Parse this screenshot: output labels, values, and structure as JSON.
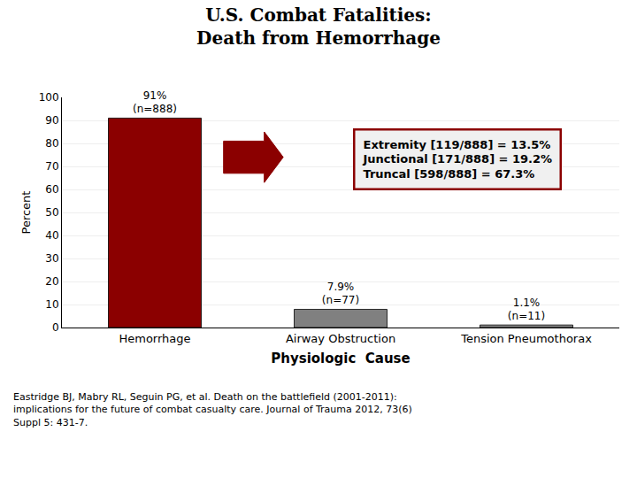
{
  "chart_data": {
    "type": "bar",
    "title": "U.S. Combat Fatalities:\nDeath from Hemorrhage",
    "categories": [
      "Hemorrhage",
      "Airway Obstruction",
      "Tension Pneumothorax"
    ],
    "values": [
      91,
      7.9,
      1.1
    ],
    "value_labels": [
      "91%",
      "7.9%",
      "1.1%"
    ],
    "count_labels": [
      "(n=888)",
      "(n=77)",
      "(n=11)"
    ],
    "colors": [
      "#8B0000",
      "#808080",
      "#808080"
    ],
    "xlabel": "Physiologic  Cause",
    "ylabel": "Percent",
    "ylim": [
      0,
      100
    ],
    "yticks": [
      0,
      10,
      20,
      30,
      40,
      50,
      60,
      70,
      80,
      90,
      100
    ],
    "grid": true,
    "data_labels": true,
    "annotation": [
      "Extremity [119/888] = 13.5%",
      "Junctional [171/888] = 19.2%",
      "Truncal [598/888] = 67.3%"
    ],
    "footnote": "Eastridge BJ, Mabry RL, Seguin PG, et al. Death on the battlefield (2001-2011):\nimplications for the future of combat casualty care. Journal of Trauma 2012, 73(6)\nSuppl 5: 431-7."
  }
}
